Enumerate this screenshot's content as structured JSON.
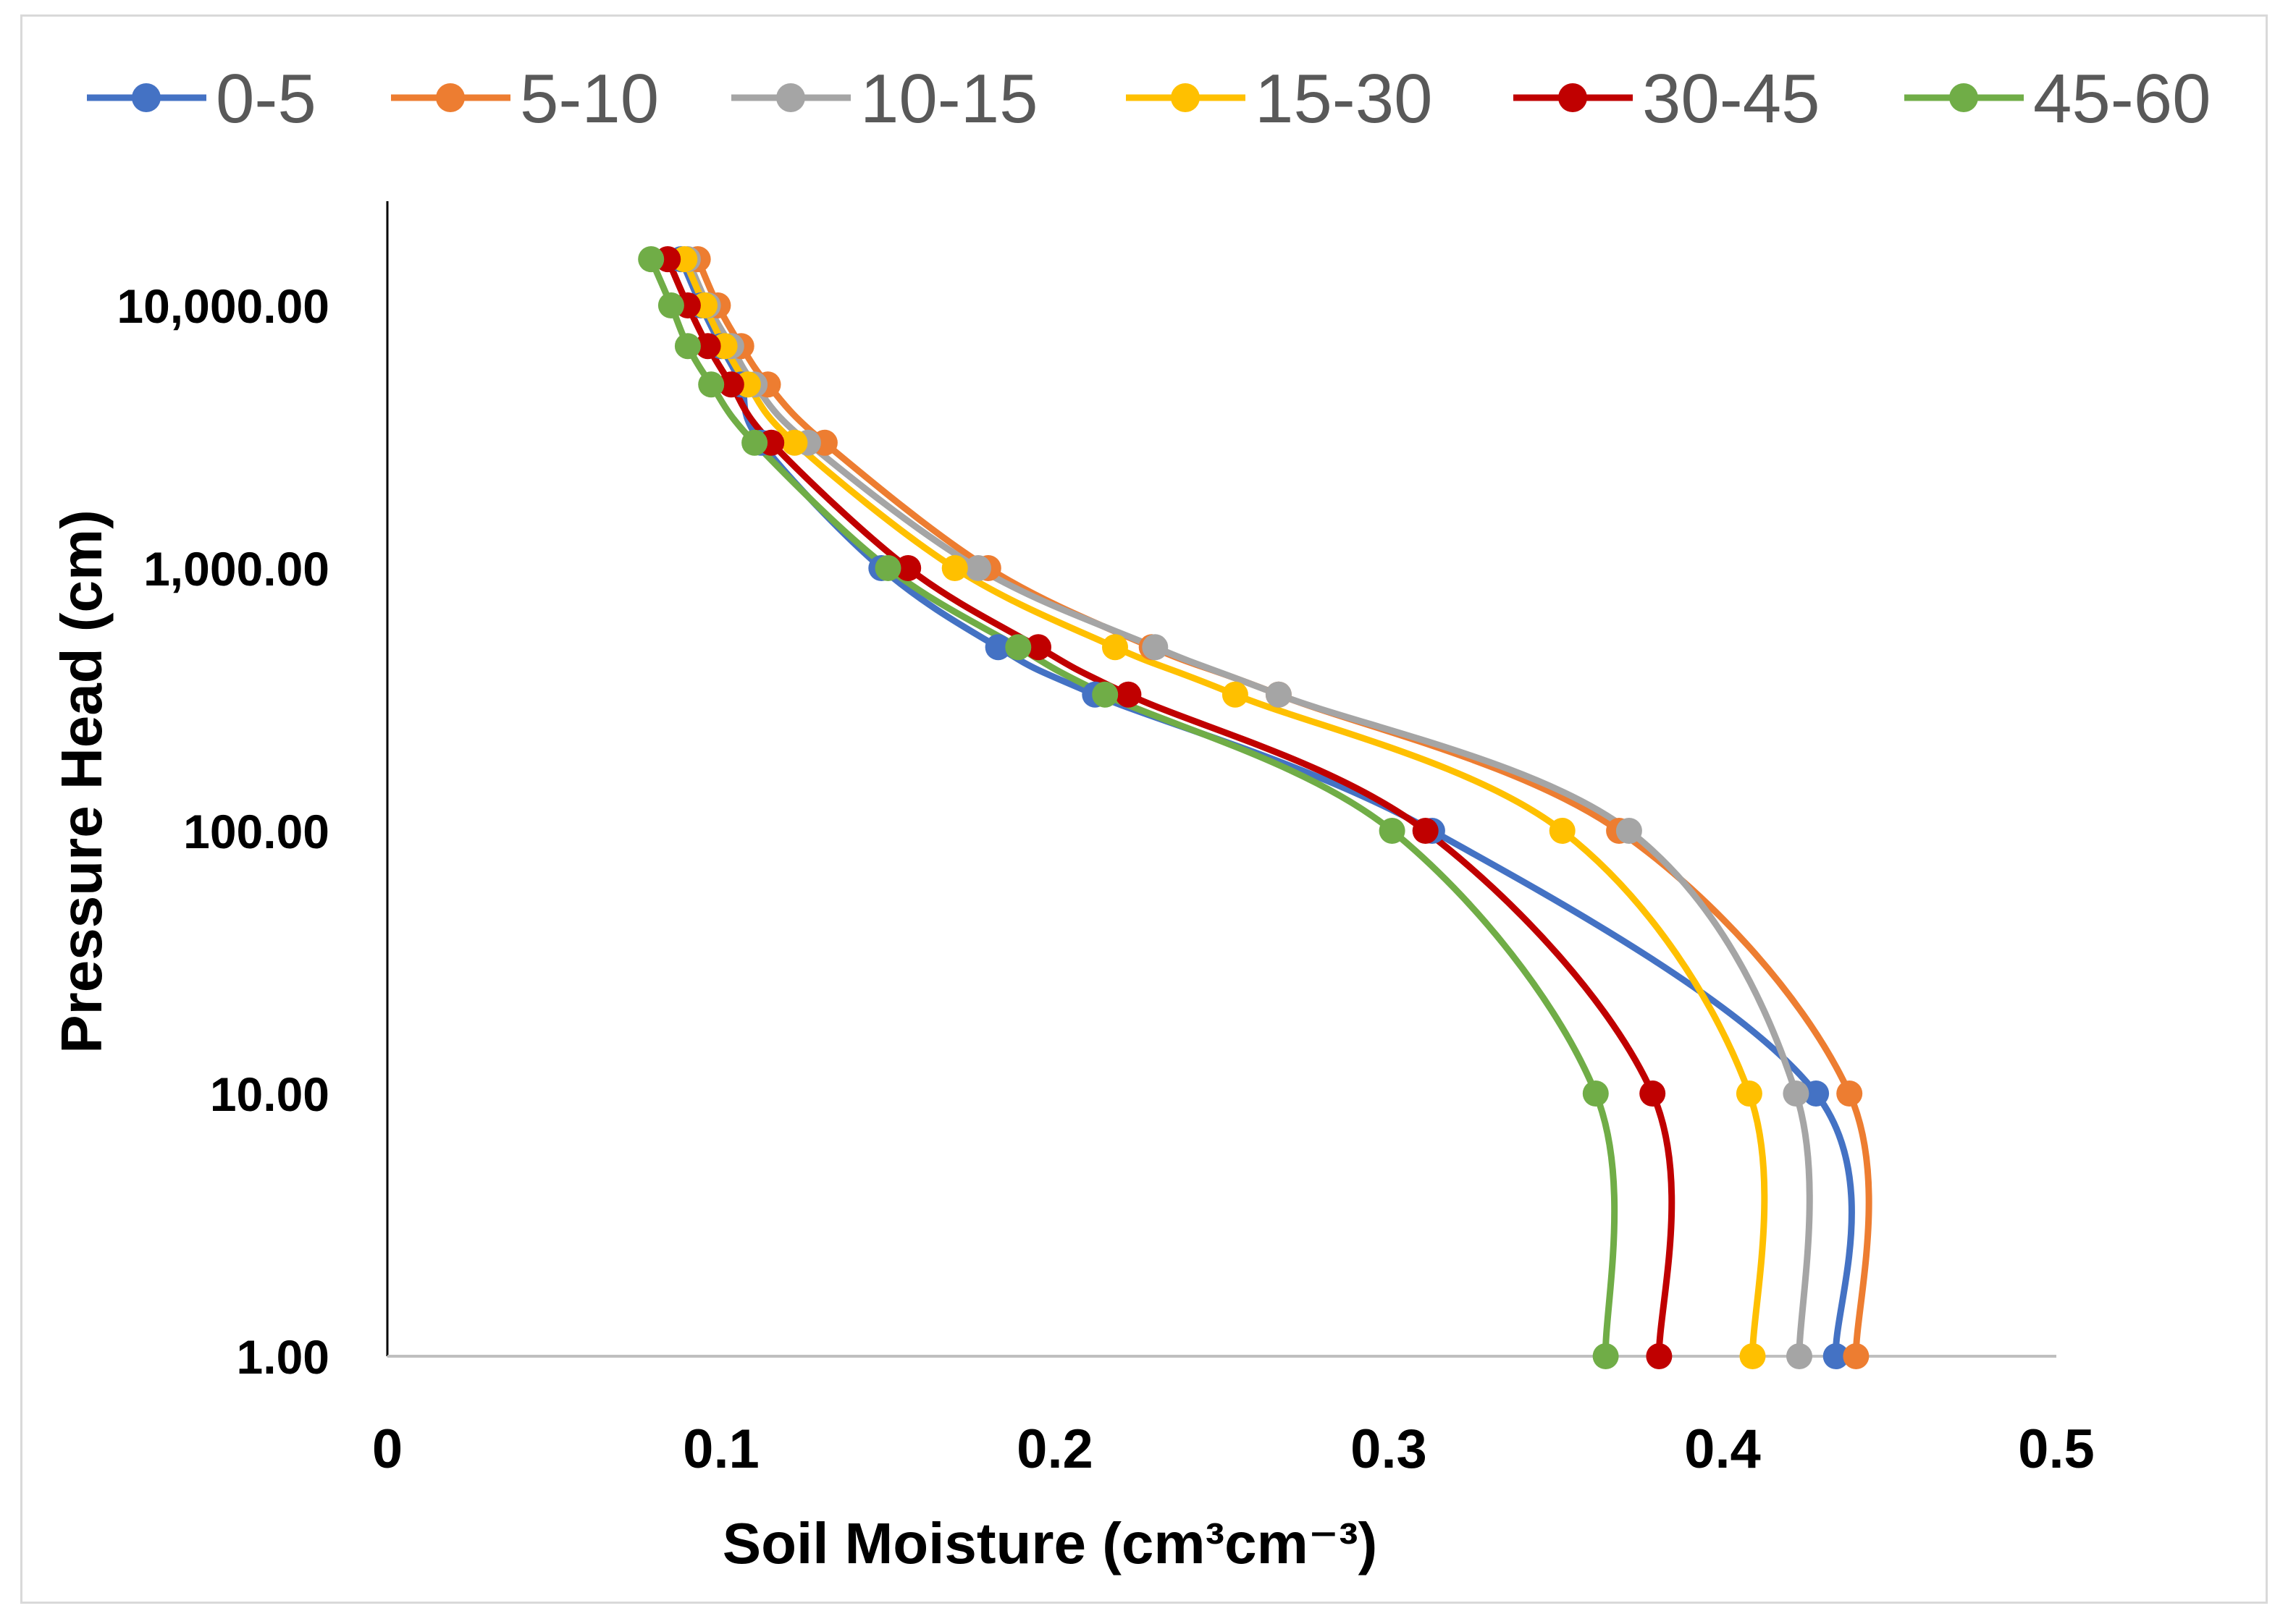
{
  "chart_data": {
    "type": "line",
    "smooth": true,
    "markers": true,
    "title": "",
    "xlabel": "Soil Moisture (cm³cm⁻³)",
    "ylabel": "Pressure Head (cm)",
    "xlim": [
      0,
      0.5
    ],
    "ylim": [
      1,
      20000
    ],
    "y_scale": "log",
    "grid": false,
    "legend_position": "top",
    "x_ticks": [
      "0",
      "0.1",
      "0.2",
      "0.3",
      "0.4",
      "0.5"
    ],
    "y_ticks": [
      {
        "value": 1,
        "label": "1.00"
      },
      {
        "value": 10,
        "label": "10.00"
      },
      {
        "value": 100,
        "label": "100.00"
      },
      {
        "value": 1000,
        "label": "1,000.00"
      },
      {
        "value": 10000,
        "label": "10,000.00"
      }
    ],
    "y_values": [
      15000,
      10000,
      7000,
      5000,
      3000,
      1000,
      500,
      330,
      100,
      10,
      1
    ],
    "series": [
      {
        "name": "0-5",
        "color": "#4472C4",
        "x": [
          0.088,
          0.094,
          0.1,
          0.106,
          0.112,
          0.148,
          0.183,
          0.212,
          0.313,
          0.428,
          0.434
        ]
      },
      {
        "name": "5-10",
        "color": "#ED7D31",
        "x": [
          0.093,
          0.099,
          0.106,
          0.114,
          0.131,
          0.18,
          0.229,
          0.267,
          0.369,
          0.438,
          0.44
        ]
      },
      {
        "name": "10-15",
        "color": "#A5A5A5",
        "x": [
          0.09,
          0.096,
          0.103,
          0.11,
          0.126,
          0.177,
          0.23,
          0.267,
          0.372,
          0.422,
          0.423
        ]
      },
      {
        "name": "15-30",
        "color": "#FFC000",
        "x": [
          0.089,
          0.095,
          0.101,
          0.108,
          0.122,
          0.17,
          0.218,
          0.254,
          0.352,
          0.408,
          0.409
        ]
      },
      {
        "name": "30-45",
        "color": "#C00000",
        "x": [
          0.084,
          0.09,
          0.096,
          0.103,
          0.115,
          0.156,
          0.195,
          0.222,
          0.311,
          0.379,
          0.381
        ]
      },
      {
        "name": "45-60",
        "color": "#70AD47",
        "x": [
          0.079,
          0.085,
          0.09,
          0.097,
          0.11,
          0.15,
          0.189,
          0.215,
          0.301,
          0.362,
          0.365
        ]
      }
    ]
  }
}
